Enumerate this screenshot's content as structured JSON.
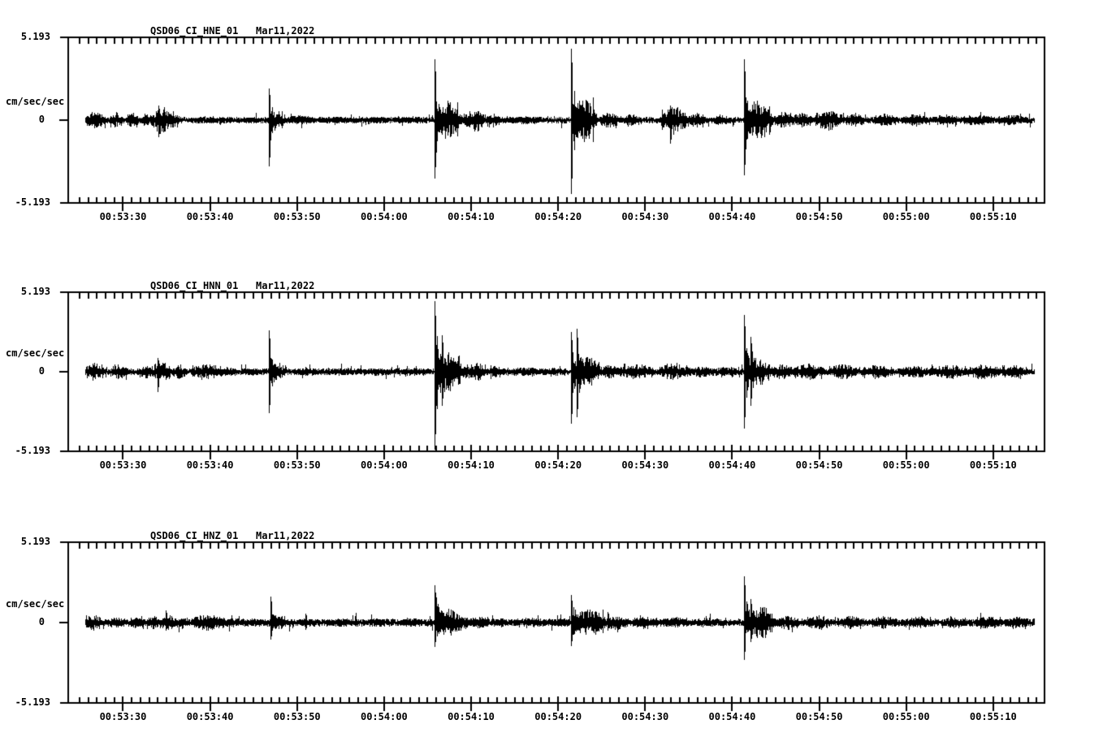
{
  "app": {
    "background": "#ffffff",
    "ink": "#000000"
  },
  "chart_data": [
    {
      "type": "line",
      "kind": "seismogram-trace",
      "title": "QSD06_CI_HNE_01   Mar11,2022",
      "station": "QSD06",
      "network": "CI",
      "channel": "HNE",
      "location": "01",
      "date": "Mar11,2022",
      "ylabel": "cm/sec/sec",
      "y_max_label": "5.193",
      "y_zero_label": "0",
      "y_min_label": "-5.193",
      "ylim": [
        -5.193,
        5.193
      ],
      "xlabel": "",
      "x_axis": {
        "tick_labels": [
          "00:53:30",
          "00:53:40",
          "00:53:50",
          "00:54:00",
          "00:54:10",
          "00:54:20",
          "00:54:30",
          "00:54:40",
          "00:54:50",
          "00:55:00",
          "00:55:10"
        ],
        "tick_interval_s": 10,
        "minor_tick_s": 1,
        "first_tick_offset_s": 6.3,
        "window_span_s": 112.2
      },
      "trace": {
        "noise_base": 0.14,
        "start_s": 2.0,
        "end_s": 111.0,
        "packets": [
          [
            2.2,
            1.6,
            0.55
          ],
          [
            5.0,
            1.0,
            0.45
          ],
          [
            6.9,
            0.9,
            0.5
          ],
          [
            8.6,
            0.8,
            0.45
          ],
          [
            9.8,
            1.8,
            0.8
          ],
          [
            11.6,
            0.9,
            0.5
          ],
          [
            13.5,
            6.0,
            0.22
          ],
          [
            20.0,
            2.5,
            0.2
          ],
          [
            23.3,
            1.2,
            0.6
          ],
          [
            25.0,
            3.0,
            0.28
          ],
          [
            29.0,
            3.0,
            0.22
          ],
          [
            33.0,
            4.0,
            0.22
          ],
          [
            38.0,
            3.0,
            0.22
          ],
          [
            42.4,
            2.3,
            1.15
          ],
          [
            44.8,
            1.5,
            0.45
          ],
          [
            46.2,
            1.3,
            0.7
          ],
          [
            48.2,
            1.2,
            0.4
          ],
          [
            50.0,
            5.0,
            0.25
          ],
          [
            58.1,
            2.2,
            1.3
          ],
          [
            61.3,
            1.6,
            0.5
          ],
          [
            63.5,
            2.0,
            0.35
          ],
          [
            68.3,
            2.4,
            0.85
          ],
          [
            71.3,
            1.6,
            0.45
          ],
          [
            74.0,
            2.0,
            0.3
          ],
          [
            78.1,
            2.4,
            1.2
          ],
          [
            81.3,
            1.8,
            0.5
          ],
          [
            83.0,
            2.2,
            0.45
          ],
          [
            86.0,
            2.6,
            0.6
          ],
          [
            89.5,
            2.0,
            0.4
          ],
          [
            92.5,
            2.5,
            0.38
          ],
          [
            96.0,
            2.5,
            0.38
          ],
          [
            99.5,
            2.5,
            0.35
          ],
          [
            103.0,
            3.0,
            0.32
          ],
          [
            107.0,
            3.0,
            0.3
          ]
        ],
        "spikes": [
          [
            10.4,
            0.9,
            1.1,
            0.25
          ],
          [
            23.1,
            2.0,
            2.9,
            0.45
          ],
          [
            42.1,
            3.8,
            3.7,
            0.55
          ],
          [
            57.8,
            4.5,
            4.6,
            0.5
          ],
          [
            69.2,
            0.9,
            1.5,
            0.3
          ],
          [
            77.7,
            3.8,
            3.5,
            0.5
          ]
        ]
      }
    },
    {
      "type": "line",
      "kind": "seismogram-trace",
      "title": "QSD06_CI_HNN_01   Mar11,2022",
      "station": "QSD06",
      "network": "CI",
      "channel": "HNN",
      "location": "01",
      "date": "Mar11,2022",
      "ylabel": "cm/sec/sec",
      "y_max_label": "5.193",
      "y_zero_label": "0",
      "y_min_label": "-5.193",
      "ylim": [
        -5.193,
        5.193
      ],
      "xlabel": "",
      "x_axis": {
        "tick_labels": [
          "00:53:30",
          "00:53:40",
          "00:53:50",
          "00:54:00",
          "00:54:10",
          "00:54:20",
          "00:54:30",
          "00:54:40",
          "00:54:50",
          "00:55:00",
          "00:55:10"
        ],
        "tick_interval_s": 10,
        "minor_tick_s": 1,
        "first_tick_offset_s": 6.3,
        "window_span_s": 112.2
      },
      "trace": {
        "noise_base": 0.15,
        "start_s": 2.0,
        "end_s": 111.0,
        "packets": [
          [
            2.2,
            1.6,
            0.55
          ],
          [
            5.2,
            1.4,
            0.5
          ],
          [
            8.3,
            1.3,
            0.45
          ],
          [
            10.0,
            1.5,
            0.6
          ],
          [
            12.2,
            1.0,
            0.45
          ],
          [
            14.3,
            3.1,
            0.5
          ],
          [
            17.5,
            1.6,
            0.28
          ],
          [
            20.0,
            2.5,
            0.22
          ],
          [
            23.3,
            1.3,
            0.6
          ],
          [
            26.0,
            3.0,
            0.25
          ],
          [
            30.0,
            3.0,
            0.25
          ],
          [
            34.0,
            3.0,
            0.25
          ],
          [
            38.0,
            3.0,
            0.25
          ],
          [
            42.5,
            2.3,
            1.4
          ],
          [
            45.0,
            1.3,
            0.5
          ],
          [
            46.3,
            1.4,
            0.55
          ],
          [
            48.6,
            1.2,
            0.45
          ],
          [
            50.5,
            4.0,
            0.28
          ],
          [
            55.0,
            2.0,
            0.25
          ],
          [
            58.3,
            2.6,
            0.9
          ],
          [
            61.3,
            1.8,
            0.42
          ],
          [
            63.5,
            3.5,
            0.45
          ],
          [
            68.0,
            3.0,
            0.5
          ],
          [
            71.5,
            2.5,
            0.35
          ],
          [
            74.5,
            2.5,
            0.32
          ],
          [
            78.2,
            2.2,
            0.85
          ],
          [
            80.8,
            2.2,
            0.48
          ],
          [
            83.5,
            3.0,
            0.5
          ],
          [
            87.5,
            3.0,
            0.45
          ],
          [
            91.5,
            3.0,
            0.4
          ],
          [
            95.5,
            3.5,
            0.4
          ],
          [
            99.5,
            3.5,
            0.42
          ],
          [
            103.5,
            3.5,
            0.45
          ],
          [
            107.5,
            2.5,
            0.4
          ]
        ],
        "spikes": [
          [
            10.3,
            0.9,
            1.3,
            0.22
          ],
          [
            23.1,
            2.7,
            2.7,
            0.45
          ],
          [
            42.1,
            4.6,
            5.1,
            0.6
          ],
          [
            42.9,
            2.4,
            2.2,
            0.45
          ],
          [
            57.75,
            2.6,
            3.4,
            0.5
          ],
          [
            58.45,
            2.8,
            3.0,
            0.5
          ],
          [
            77.65,
            3.7,
            3.7,
            0.5
          ],
          [
            78.45,
            2.3,
            2.2,
            0.45
          ]
        ]
      }
    },
    {
      "type": "line",
      "kind": "seismogram-trace",
      "title": "QSD06_CI_HNZ_01   Mar11,2022",
      "station": "QSD06",
      "network": "CI",
      "channel": "HNZ",
      "location": "01",
      "date": "Mar11,2022",
      "ylabel": "cm/sec/sec",
      "y_max_label": "5.193",
      "y_zero_label": "0",
      "y_min_label": "-5.193",
      "ylim": [
        -5.193,
        5.193
      ],
      "xlabel": "",
      "x_axis": {
        "tick_labels": [
          "00:53:30",
          "00:53:40",
          "00:53:50",
          "00:54:00",
          "00:54:10",
          "00:54:20",
          "00:54:30",
          "00:54:40",
          "00:54:50",
          "00:55:00",
          "00:55:10"
        ],
        "tick_interval_s": 10,
        "minor_tick_s": 1,
        "first_tick_offset_s": 6.3,
        "window_span_s": 112.2
      },
      "trace": {
        "noise_base": 0.17,
        "start_s": 2.0,
        "end_s": 111.0,
        "packets": [
          [
            2.1,
            1.4,
            0.5
          ],
          [
            5.0,
            1.2,
            0.35
          ],
          [
            7.2,
            1.2,
            0.38
          ],
          [
            9.3,
            1.2,
            0.42
          ],
          [
            10.9,
            1.3,
            0.45
          ],
          [
            12.6,
            1.0,
            0.38
          ],
          [
            14.3,
            3.4,
            0.5
          ],
          [
            17.8,
            2.2,
            0.3
          ],
          [
            20.5,
            2.0,
            0.25
          ],
          [
            23.4,
            1.4,
            0.5
          ],
          [
            26.0,
            2.5,
            0.25
          ],
          [
            30.0,
            3.0,
            0.25
          ],
          [
            34.0,
            3.0,
            0.25
          ],
          [
            38.0,
            2.5,
            0.28
          ],
          [
            42.4,
            2.6,
            0.85
          ],
          [
            45.0,
            1.5,
            0.4
          ],
          [
            46.5,
            1.6,
            0.4
          ],
          [
            49.0,
            1.6,
            0.3
          ],
          [
            51.5,
            4.0,
            0.28
          ],
          [
            56.0,
            1.5,
            0.28
          ],
          [
            58.2,
            3.2,
            0.85
          ],
          [
            62.0,
            2.0,
            0.45
          ],
          [
            65.0,
            2.5,
            0.4
          ],
          [
            68.5,
            2.5,
            0.35
          ],
          [
            72.0,
            2.5,
            0.3
          ],
          [
            78.2,
            2.6,
            1.0
          ],
          [
            81.5,
            2.2,
            0.42
          ],
          [
            85.0,
            2.5,
            0.45
          ],
          [
            88.5,
            2.5,
            0.4
          ],
          [
            92.5,
            2.5,
            0.4
          ],
          [
            96.5,
            2.5,
            0.38
          ],
          [
            100.5,
            2.5,
            0.4
          ],
          [
            104.5,
            2.5,
            0.4
          ],
          [
            107.8,
            2.2,
            0.38
          ]
        ],
        "spikes": [
          [
            11.2,
            0.8,
            0.5,
            0.2
          ],
          [
            23.2,
            1.7,
            1.1,
            0.6
          ],
          [
            27.3,
            0.6,
            0.45,
            0.2
          ],
          [
            42.1,
            2.4,
            1.6,
            0.8
          ],
          [
            57.8,
            1.8,
            1.5,
            0.9
          ],
          [
            62.0,
            0.7,
            0.5,
            0.2
          ],
          [
            77.65,
            3.0,
            2.4,
            0.55
          ],
          [
            78.45,
            1.5,
            1.3,
            0.4
          ]
        ]
      }
    }
  ]
}
